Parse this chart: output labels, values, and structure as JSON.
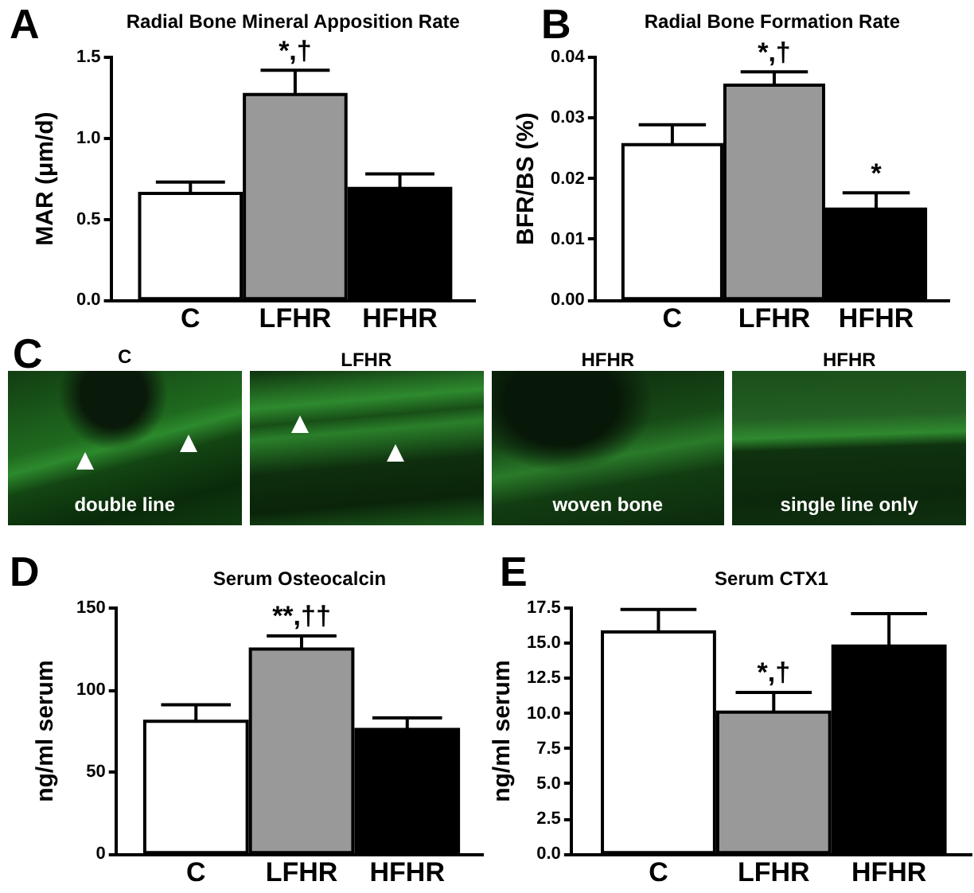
{
  "chart_data": [
    {
      "type": "bar",
      "title": "Radial Bone Mineral Apposition Rate",
      "ylabel": "MAR (μm/d)",
      "categories": [
        "C",
        "LFHR",
        "HFHR"
      ],
      "values": [
        0.66,
        1.27,
        0.69
      ],
      "errors": [
        0.07,
        0.15,
        0.09
      ],
      "colors": [
        "#ffffff",
        "#999999",
        "#000000"
      ],
      "ylim": [
        0,
        1.5
      ],
      "yticks": [
        {
          "value": 0,
          "label": "0.0"
        },
        0.5,
        {
          "value": 1,
          "label": "1.0"
        },
        1.5
      ],
      "annotations": [
        "A",
        {
          "text": "*,†",
          "x": "LFHR",
          "y": 1.42
        }
      ]
    },
    {
      "type": "bar",
      "title": "Radial Bone Formation Rate",
      "ylabel": "BFR/BS (%)",
      "categories": [
        "C",
        "LFHR",
        "HFHR"
      ],
      "values": [
        0.0256,
        0.0354,
        0.015
      ],
      "errors": [
        0.0033,
        0.0022,
        0.0027
      ],
      "colors": [
        "#ffffff",
        "#999999",
        "#000000"
      ],
      "ylim": [
        0,
        0.04
      ],
      "yticks": [
        {
          "value": 0,
          "label": "0.00"
        },
        0.01,
        0.02,
        0.03,
        0.04
      ],
      "annotations": [
        "B",
        {
          "text": "*,†",
          "x": "LFHR",
          "y": 0.0376
        },
        {
          "text": "*",
          "x": "HFHR",
          "y": 0.0177
        }
      ]
    },
    {
      "type": "other",
      "categories": [
        "C",
        "LFHR",
        "HFHR",
        "HFHR"
      ],
      "annotations": [
        "C",
        "double line",
        "woven bone",
        "single line only"
      ]
    },
    {
      "type": "bar",
      "title": "Serum Osteocalcin",
      "ylabel": "ng/ml serum",
      "categories": [
        "C",
        "LFHR",
        "HFHR"
      ],
      "values": [
        81,
        125,
        76
      ],
      "errors": [
        10,
        8,
        7
      ],
      "colors": [
        "#ffffff",
        "#999999",
        "#000000"
      ],
      "ylim": [
        0,
        150
      ],
      "yticks": [
        0,
        50,
        100,
        150
      ],
      "annotations": [
        "D",
        {
          "text": "**,††",
          "x": "LFHR",
          "y": 133
        }
      ]
    },
    {
      "type": "bar",
      "title": "Serum CTX1",
      "ylabel": "ng/ml serum",
      "categories": [
        "C",
        "LFHR",
        "HFHR"
      ],
      "values": [
        15.8,
        10.1,
        14.8
      ],
      "errors": [
        1.6,
        1.4,
        2.3
      ],
      "colors": [
        "#ffffff",
        "#999999",
        "#000000"
      ],
      "ylim": [
        0,
        17.5
      ],
      "yticks": [
        {
          "value": 0,
          "label": "0.0"
        },
        2.5,
        {
          "value": 5,
          "label": "5.0"
        },
        7.5,
        {
          "value": 10,
          "label": "10.0"
        },
        12.5,
        {
          "value": 15,
          "label": "15.0"
        },
        17.5
      ],
      "annotations": [
        "E",
        {
          "text": "*,†",
          "x": "LFHR",
          "y": 11.5
        }
      ]
    }
  ]
}
